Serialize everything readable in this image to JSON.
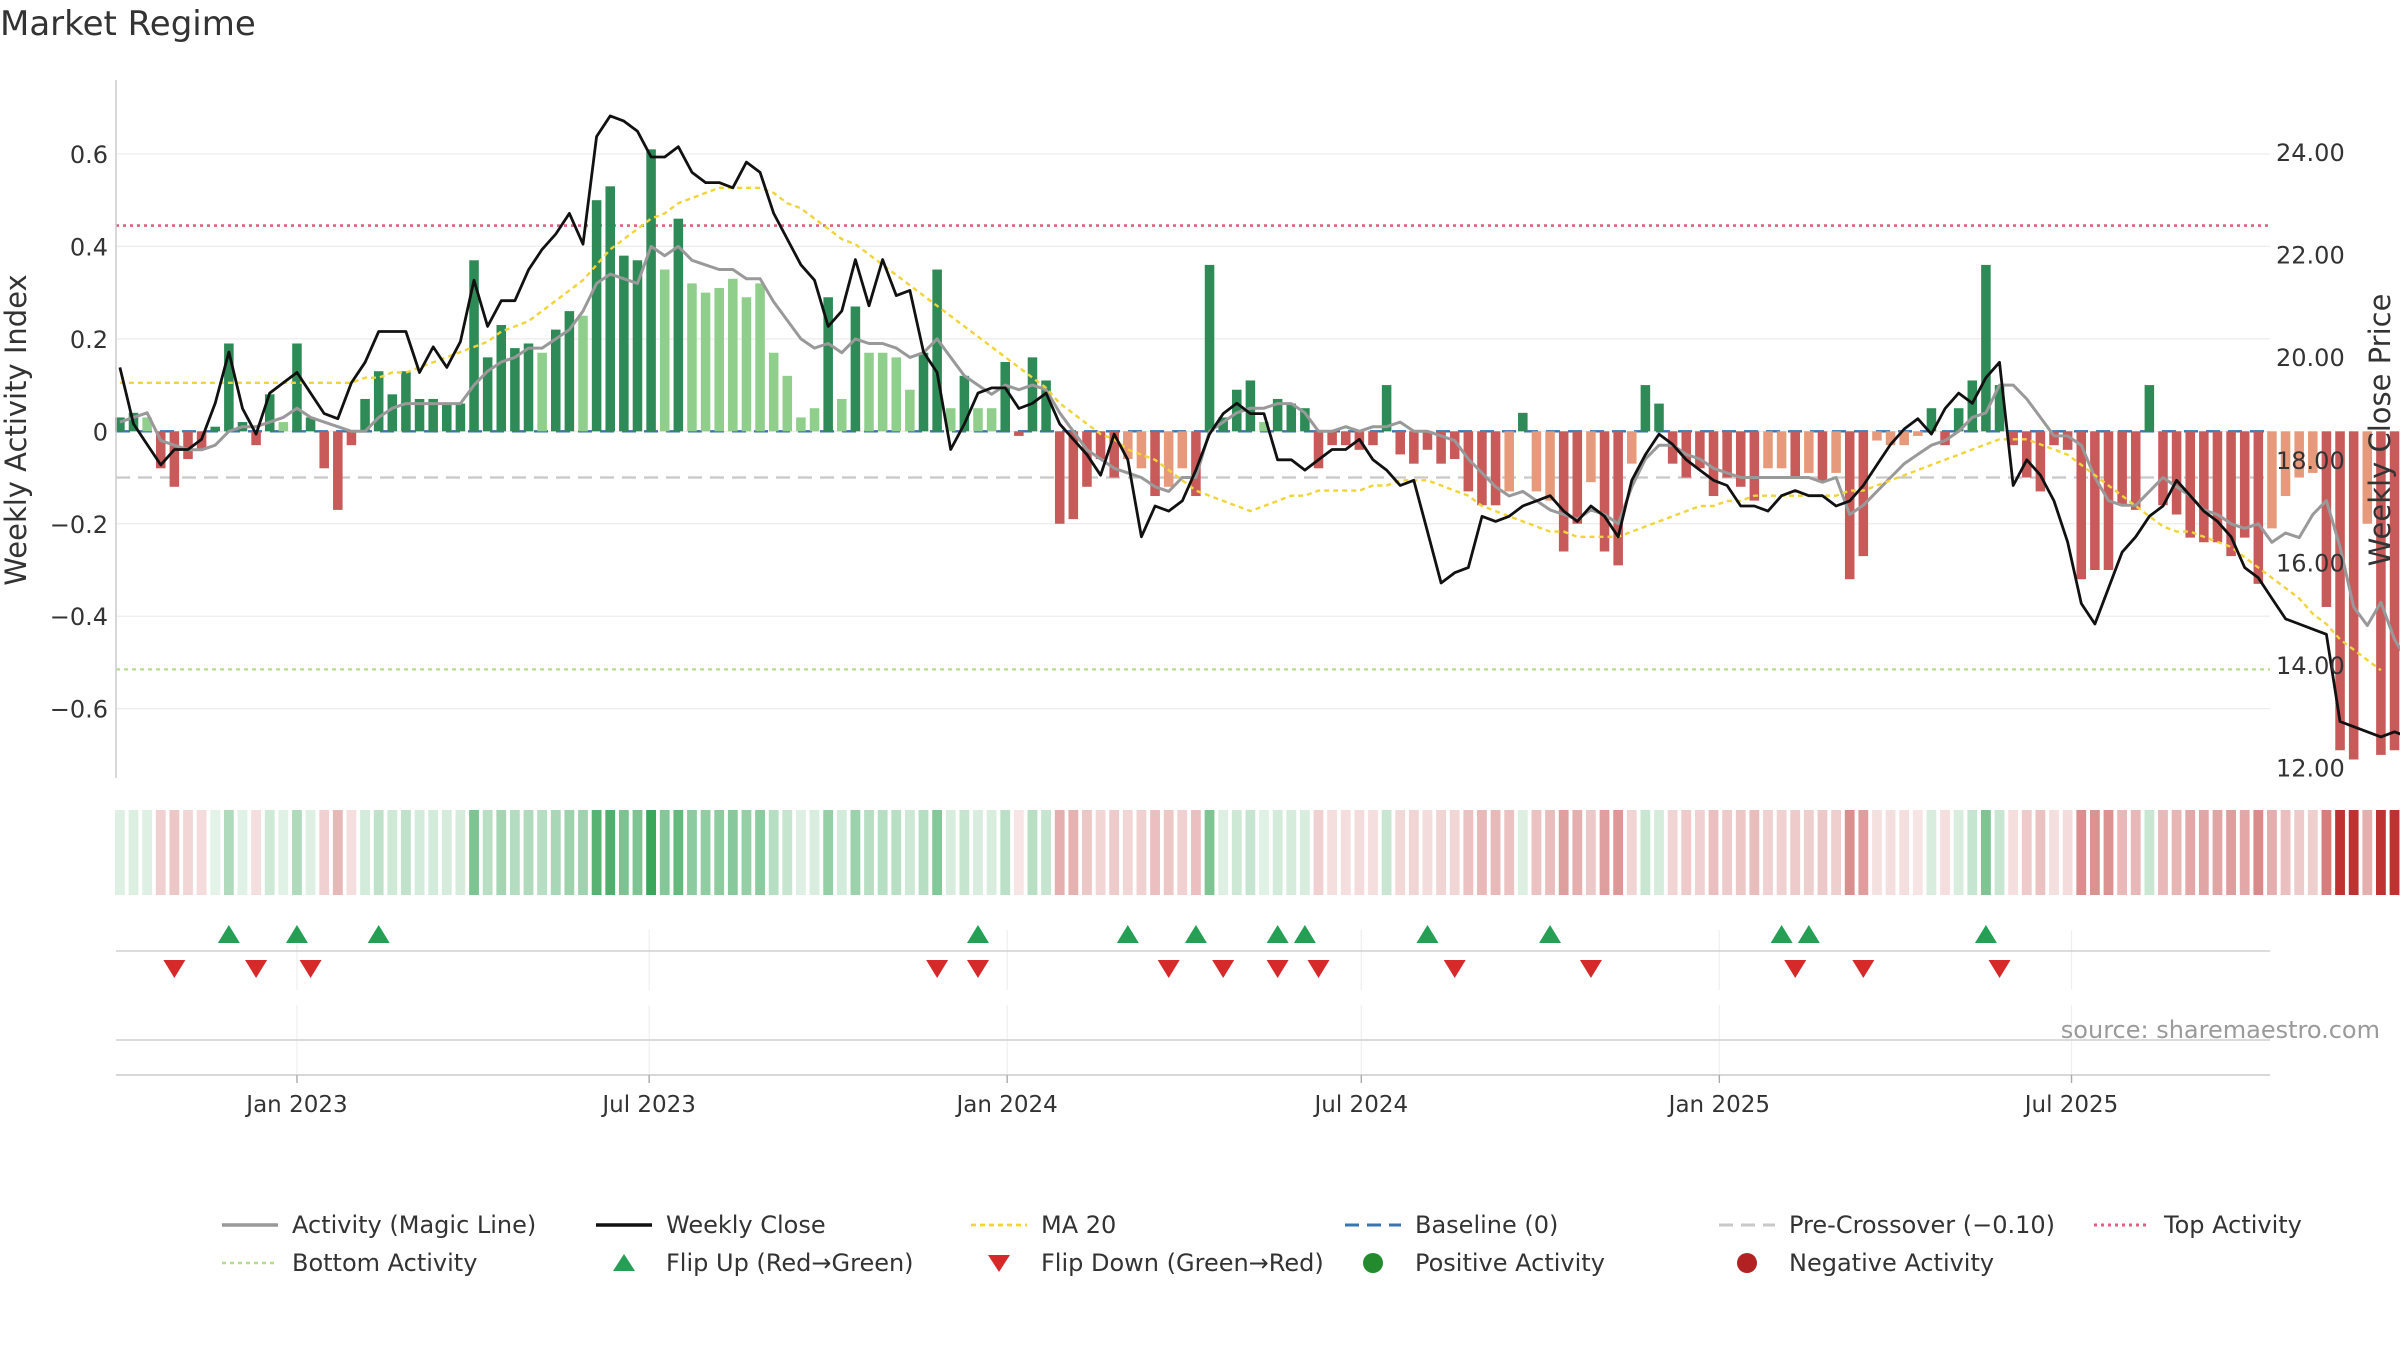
{
  "chart_data": {
    "type": "bar",
    "title": "Market Regime",
    "source": "source: sharemaestro.com",
    "left_axis": {
      "label": "Weekly Activity Index",
      "ticks": [
        0.6,
        0.4,
        0.2,
        0,
        -0.2,
        -0.4,
        -0.6
      ],
      "tick_labels": [
        "0.6",
        "0.4",
        "0.2",
        "0",
        "−0.2",
        "−0.4",
        "−0.6"
      ],
      "ylim": [
        -0.75,
        0.76
      ]
    },
    "right_axis": {
      "label": "Weekly Close Price",
      "ticks": [
        24,
        22,
        20,
        18,
        16,
        14,
        12
      ],
      "tick_labels": [
        "24.00",
        "22.00",
        "20.00",
        "18.00",
        "16.00",
        "14.00",
        "12.00"
      ],
      "ylim": [
        11.8,
        25.4
      ]
    },
    "x_axis": {
      "ticks": [
        "2023-01-01",
        "2023-07-01",
        "2024-01-01",
        "2024-07-01",
        "2025-01-01",
        "2025-07-01"
      ],
      "tick_labels": [
        "Jan 2023",
        "Jul 2023",
        "Jan 2024",
        "Jul 2024",
        "Jan 2025",
        "Jul 2025"
      ],
      "range": [
        "2022-09-30",
        "2025-10-11"
      ]
    },
    "start_date": "2022-10-02",
    "reference_lines": {
      "baseline": 0,
      "pre_crossover": -0.1,
      "top_activity": 0.445,
      "bottom_activity": -0.515
    },
    "activity_bars": [
      0.03,
      0.04,
      0.03,
      -0.08,
      -0.12,
      -0.06,
      -0.04,
      0.01,
      0.19,
      0.02,
      -0.03,
      0.08,
      0.02,
      0.19,
      0.03,
      -0.08,
      -0.17,
      -0.03,
      0.07,
      0.13,
      0.08,
      0.13,
      0.07,
      0.07,
      0.06,
      0.06,
      0.37,
      0.16,
      0.23,
      0.18,
      0.19,
      0.17,
      0.22,
      0.26,
      0.25,
      0.5,
      0.53,
      0.38,
      0.37,
      0.61,
      0.35,
      0.46,
      0.32,
      0.3,
      0.31,
      0.33,
      0.29,
      0.32,
      0.17,
      0.12,
      0.03,
      0.05,
      0.29,
      0.07,
      0.27,
      0.17,
      0.17,
      0.16,
      0.09,
      0.17,
      0.35,
      0.05,
      0.12,
      0.05,
      0.05,
      0.15,
      -0.01,
      0.16,
      0.11,
      -0.2,
      -0.19,
      -0.12,
      -0.06,
      -0.1,
      -0.06,
      -0.08,
      -0.14,
      -0.12,
      -0.08,
      -0.14,
      0.36,
      0.03,
      0.09,
      0.11,
      0.02,
      0.07,
      0.06,
      0.05,
      -0.08,
      -0.03,
      -0.03,
      -0.04,
      -0.03,
      0.1,
      -0.05,
      -0.07,
      -0.04,
      -0.07,
      -0.06,
      -0.13,
      -0.16,
      -0.16,
      -0.13,
      0.04,
      -0.13,
      -0.15,
      -0.26,
      -0.2,
      -0.11,
      -0.26,
      -0.29,
      -0.07,
      0.1,
      0.06,
      -0.07,
      -0.1,
      -0.08,
      -0.14,
      -0.1,
      -0.12,
      -0.15,
      -0.08,
      -0.08,
      -0.1,
      -0.09,
      -0.11,
      -0.09,
      -0.32,
      -0.27,
      -0.02,
      -0.03,
      -0.03,
      -0.01,
      0.05,
      -0.03,
      0.05,
      0.11,
      0.36,
      0.1,
      -0.03,
      -0.1,
      -0.13,
      -0.03,
      -0.04,
      -0.32,
      -0.3,
      -0.3,
      -0.16,
      -0.17,
      0.1,
      -0.16,
      -0.18,
      -0.23,
      -0.24,
      -0.24,
      -0.27,
      -0.23,
      -0.33,
      -0.21,
      -0.14,
      -0.1,
      -0.09,
      -0.38,
      -0.69,
      -0.71,
      -0.2,
      -0.7,
      -0.69,
      -0.7
    ],
    "magic_line": [
      0.02,
      0.03,
      0.04,
      -0.02,
      -0.03,
      -0.04,
      -0.04,
      -0.03,
      0.0,
      0.01,
      0.01,
      0.02,
      0.03,
      0.05,
      0.03,
      0.02,
      0.01,
      0.0,
      0.0,
      0.03,
      0.05,
      0.06,
      0.06,
      0.06,
      0.06,
      0.06,
      0.1,
      0.13,
      0.15,
      0.16,
      0.18,
      0.18,
      0.2,
      0.22,
      0.26,
      0.32,
      0.34,
      0.33,
      0.32,
      0.4,
      0.38,
      0.4,
      0.37,
      0.36,
      0.35,
      0.35,
      0.33,
      0.33,
      0.28,
      0.24,
      0.2,
      0.18,
      0.19,
      0.17,
      0.2,
      0.19,
      0.19,
      0.18,
      0.16,
      0.17,
      0.2,
      0.16,
      0.12,
      0.1,
      0.08,
      0.1,
      0.09,
      0.1,
      0.09,
      0.04,
      0.0,
      -0.04,
      -0.06,
      -0.08,
      -0.09,
      -0.1,
      -0.12,
      -0.13,
      -0.1,
      -0.1,
      0.0,
      0.02,
      0.04,
      0.05,
      0.05,
      0.06,
      0.06,
      0.04,
      0.0,
      0.0,
      0.01,
      0.0,
      0.01,
      0.01,
      0.02,
      0.0,
      0.0,
      -0.01,
      -0.02,
      -0.06,
      -0.09,
      -0.12,
      -0.14,
      -0.13,
      -0.15,
      -0.17,
      -0.18,
      -0.19,
      -0.17,
      -0.18,
      -0.2,
      -0.12,
      -0.06,
      -0.03,
      -0.03,
      -0.05,
      -0.06,
      -0.08,
      -0.09,
      -0.1,
      -0.1,
      -0.1,
      -0.1,
      -0.1,
      -0.1,
      -0.11,
      -0.1,
      -0.18,
      -0.16,
      -0.13,
      -0.1,
      -0.07,
      -0.05,
      -0.03,
      -0.02,
      0.0,
      0.03,
      0.04,
      0.1,
      0.1,
      0.07,
      0.03,
      -0.01,
      -0.01,
      -0.03,
      -0.1,
      -0.15,
      -0.16,
      -0.16,
      -0.13,
      -0.1,
      -0.12,
      -0.14,
      -0.17,
      -0.18,
      -0.2,
      -0.21,
      -0.2,
      -0.24,
      -0.22,
      -0.23,
      -0.18,
      -0.15,
      -0.25,
      -0.38,
      -0.42,
      -0.37,
      -0.45,
      -0.5,
      -0.53
    ],
    "weekly_close": [
      19.8,
      18.7,
      18.3,
      17.9,
      18.2,
      18.2,
      18.4,
      19.1,
      20.1,
      19.0,
      18.5,
      19.3,
      19.5,
      19.7,
      19.3,
      18.9,
      18.8,
      19.5,
      19.9,
      20.5,
      20.5,
      20.5,
      19.7,
      20.2,
      19.8,
      20.3,
      21.5,
      20.6,
      21.1,
      21.1,
      21.7,
      22.1,
      22.4,
      22.8,
      22.2,
      24.3,
      24.7,
      24.6,
      24.4,
      23.9,
      23.9,
      24.1,
      23.6,
      23.4,
      23.4,
      23.3,
      23.8,
      23.6,
      22.8,
      22.3,
      21.8,
      21.5,
      20.6,
      20.9,
      21.9,
      21.0,
      21.9,
      21.2,
      21.3,
      20.1,
      19.7,
      18.2,
      18.7,
      19.3,
      19.4,
      19.4,
      19.0,
      19.1,
      19.3,
      18.7,
      18.4,
      18.1,
      17.7,
      18.5,
      18.0,
      16.5,
      17.1,
      17.0,
      17.2,
      17.8,
      18.5,
      18.9,
      19.1,
      18.9,
      18.9,
      18.0,
      18.0,
      17.8,
      18.0,
      18.2,
      18.2,
      18.4,
      18.0,
      17.8,
      17.5,
      17.6,
      16.6,
      15.6,
      15.8,
      15.9,
      16.9,
      16.8,
      16.9,
      17.1,
      17.2,
      17.3,
      17.0,
      16.8,
      17.1,
      16.9,
      16.5,
      17.6,
      18.1,
      18.5,
      18.3,
      18.0,
      17.8,
      17.6,
      17.5,
      17.1,
      17.1,
      17.0,
      17.3,
      17.4,
      17.3,
      17.3,
      17.1,
      17.2,
      17.5,
      17.9,
      18.3,
      18.6,
      18.8,
      18.5,
      19.0,
      19.3,
      19.1,
      19.6,
      19.9,
      17.5,
      18.0,
      17.7,
      17.2,
      16.4,
      15.2,
      14.8,
      15.5,
      16.2,
      16.5,
      16.9,
      17.1,
      17.6,
      17.3,
      17.0,
      16.8,
      16.5,
      15.9,
      15.7,
      15.3,
      14.9,
      14.8,
      14.7,
      14.6,
      12.9,
      12.8,
      12.7,
      12.6,
      12.7,
      12.6,
      12.7
    ],
    "ma20": [
      19.5,
      19.5,
      19.5,
      19.5,
      19.5,
      19.5,
      19.5,
      19.5,
      19.5,
      19.5,
      19.5,
      19.5,
      19.5,
      19.5,
      19.5,
      19.5,
      19.5,
      19.5,
      19.6,
      19.6,
      19.7,
      19.7,
      19.8,
      19.9,
      20.0,
      20.1,
      20.2,
      20.3,
      20.5,
      20.6,
      20.7,
      20.9,
      21.1,
      21.3,
      21.5,
      21.8,
      22.1,
      22.3,
      22.5,
      22.7,
      22.8,
      23.0,
      23.1,
      23.2,
      23.3,
      23.3,
      23.3,
      23.3,
      23.2,
      23.0,
      22.9,
      22.7,
      22.5,
      22.3,
      22.2,
      22.0,
      21.8,
      21.6,
      21.4,
      21.2,
      21.0,
      20.8,
      20.6,
      20.4,
      20.2,
      20.0,
      19.8,
      19.6,
      19.4,
      19.1,
      18.9,
      18.7,
      18.5,
      18.4,
      18.2,
      18.1,
      18.0,
      17.8,
      17.6,
      17.4,
      17.3,
      17.2,
      17.1,
      17.0,
      17.1,
      17.2,
      17.3,
      17.3,
      17.4,
      17.4,
      17.4,
      17.4,
      17.5,
      17.5,
      17.6,
      17.6,
      17.6,
      17.5,
      17.4,
      17.3,
      17.1,
      17.0,
      16.9,
      16.8,
      16.7,
      16.6,
      16.6,
      16.5,
      16.5,
      16.5,
      16.5,
      16.6,
      16.7,
      16.8,
      16.9,
      17.0,
      17.1,
      17.1,
      17.2,
      17.2,
      17.3,
      17.3,
      17.3,
      17.3,
      17.3,
      17.3,
      17.3,
      17.4,
      17.4,
      17.5,
      17.6,
      17.7,
      17.8,
      17.9,
      18.0,
      18.1,
      18.2,
      18.3,
      18.4,
      18.4,
      18.4,
      18.3,
      18.2,
      18.1,
      17.9,
      17.7,
      17.5,
      17.3,
      17.1,
      16.9,
      16.7,
      16.6,
      16.6,
      16.5,
      16.4,
      16.3,
      16.1,
      15.9,
      15.7,
      15.5,
      15.3,
      15.0,
      14.8,
      14.5,
      14.3,
      14.1,
      13.9
    ],
    "flip_up_weeks": [
      8,
      13,
      19,
      63,
      74,
      79,
      85,
      87,
      96,
      105,
      122,
      124,
      137
    ],
    "flip_down_weeks": [
      4,
      10,
      14,
      60,
      63,
      77,
      81,
      85,
      88,
      98,
      108,
      123,
      128,
      138
    ],
    "legend": [
      "Activity (Magic Line)",
      "Weekly Close",
      "MA 20",
      "Baseline (0)",
      "Pre-Crossover (−0.10)",
      "Top Activity",
      "Bottom Activity",
      "Flip Up (Red→Green)",
      "Flip Down (Green→Red)",
      "Positive Activity",
      "Negative Activity"
    ],
    "legend_placement": "bottom",
    "grid": true
  },
  "colors": {
    "strong_green": "#2e8b57",
    "light_green": "#8fcf8b",
    "strong_red": "#c85a5a",
    "light_red": "#e79a7b",
    "magic_line": "#999999",
    "close": "#111111",
    "ma20": "#f0d43a",
    "baseline": "#3a75b0",
    "pre_crossover": "#c8c8c8",
    "top_activity": "#e06080",
    "bottom_activity": "#b5dc8a",
    "flip_up": "#23a053",
    "flip_down": "#d62a2a",
    "positive_dot": "#238b2e",
    "negative_dot": "#b22222"
  }
}
